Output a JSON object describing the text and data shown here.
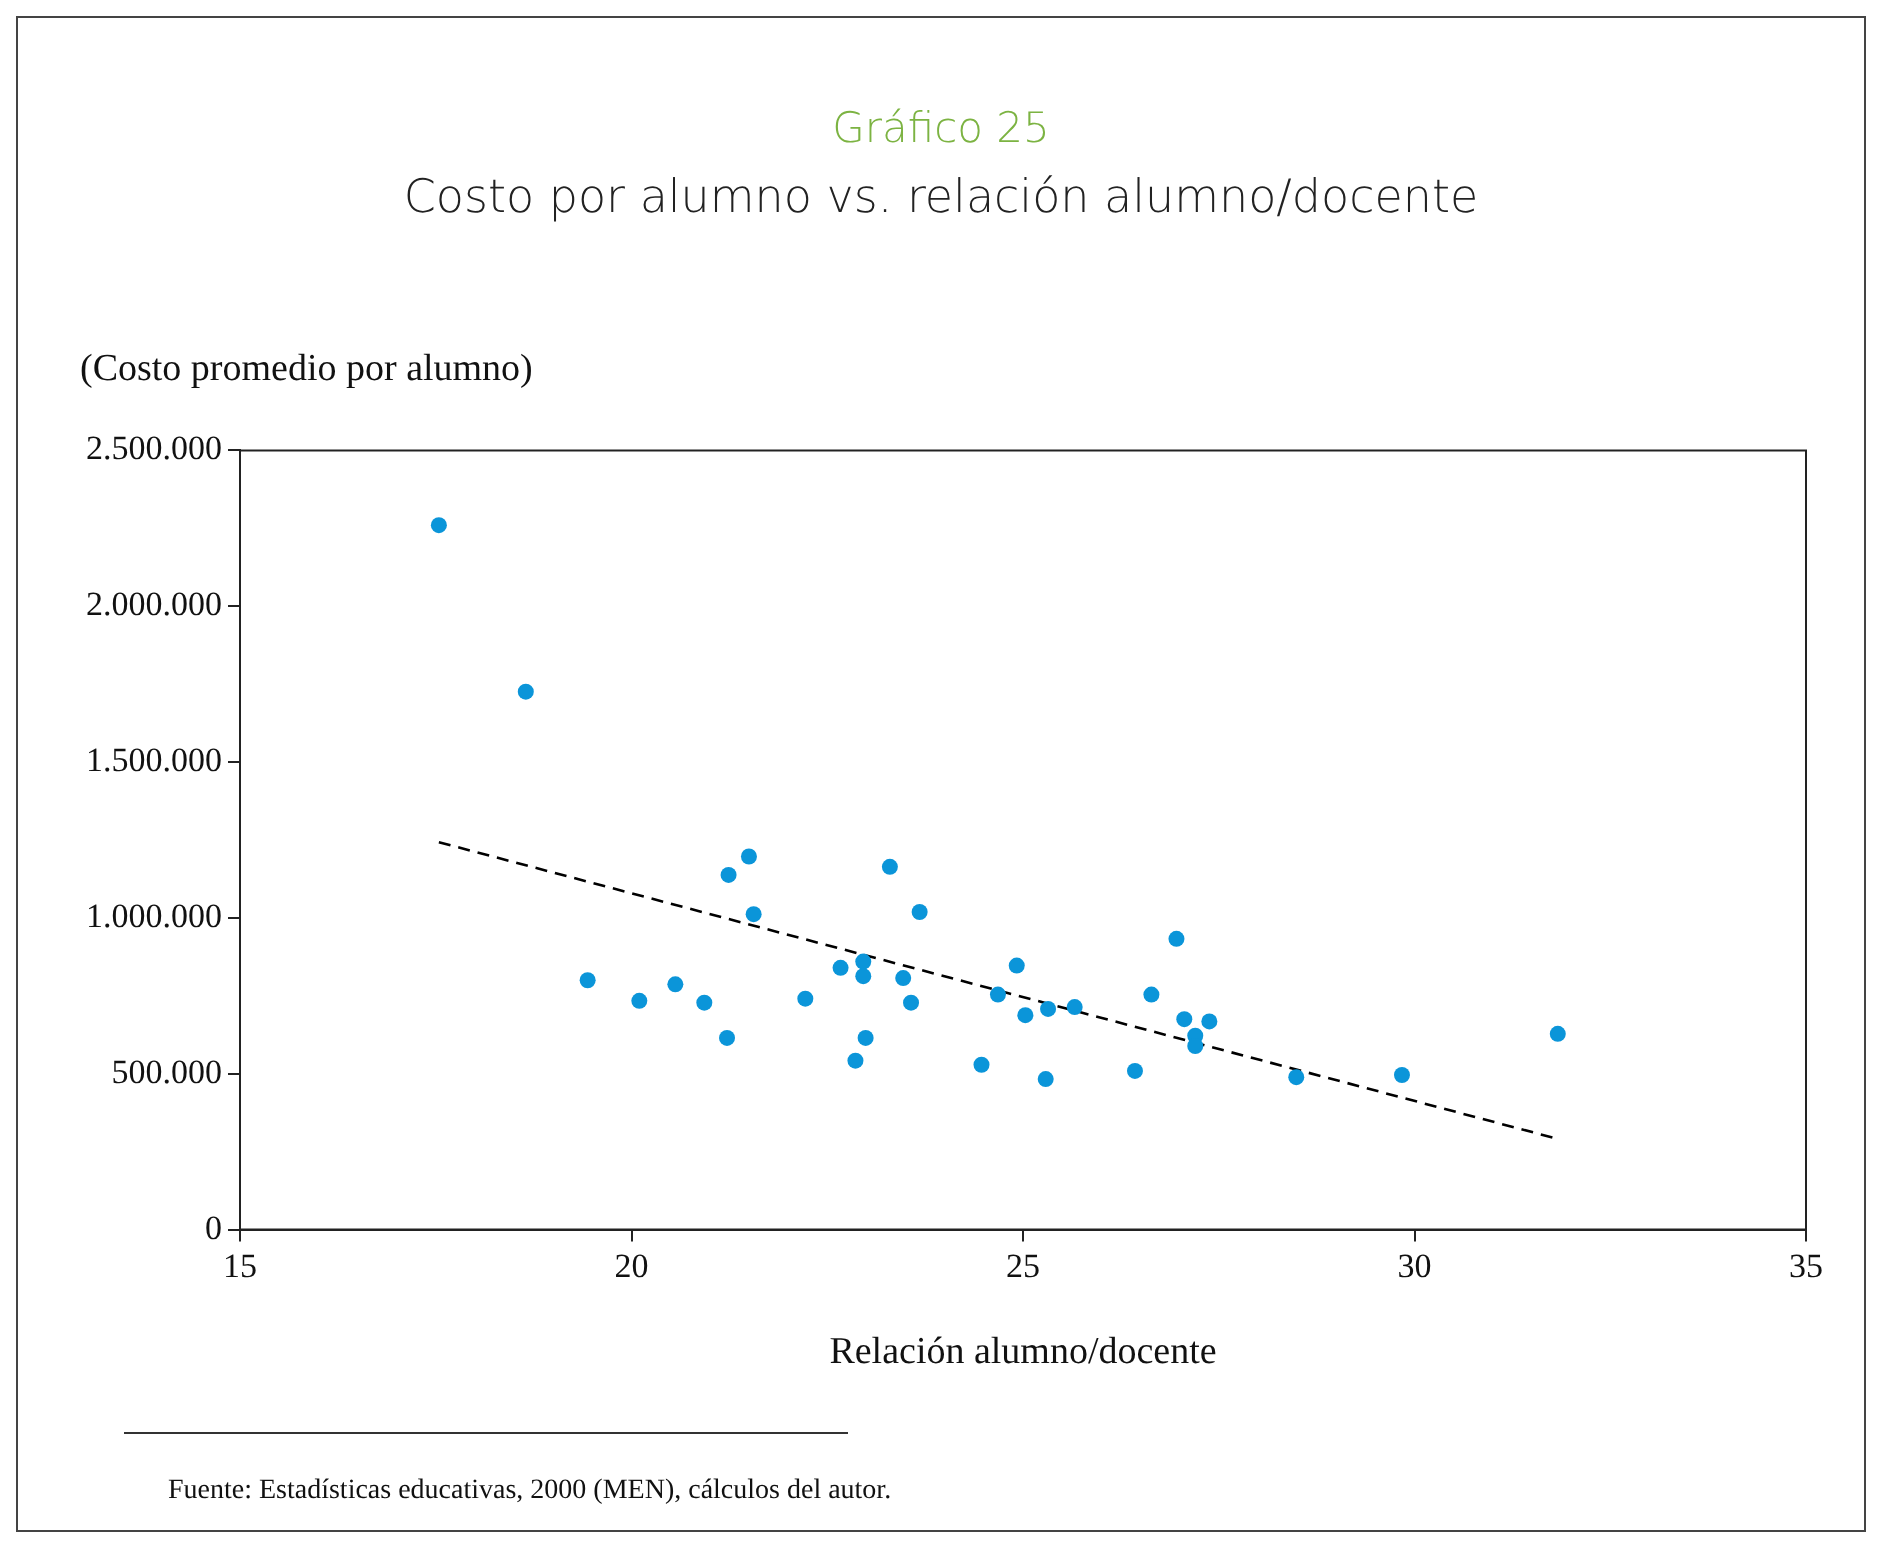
{
  "chart_data": {
    "type": "scatter",
    "title": "Gráfico 25",
    "subtitle": "Costo por alumno vs. relación alumno/docente",
    "xlabel": "Relación alumno/docente",
    "ylabel": "(Costo promedio por alumno)",
    "annotations": [
      "Fuente: Estadísticas educativas, 2000 (MEN), cálculos del autor."
    ],
    "xlim": [
      15,
      35
    ],
    "xticks": [
      15,
      20,
      25,
      30,
      35
    ],
    "ylim": [
      0,
      2500000
    ],
    "yticks": [
      {
        "value": 0,
        "label": "0"
      },
      {
        "value": 500000,
        "label": "500.000"
      },
      {
        "value": 1000000,
        "label": "1.000.000"
      },
      {
        "value": 1500000,
        "label": "1.500.000"
      },
      {
        "value": 2000000,
        "label": "2.000.000"
      },
      {
        "value": 2500000,
        "label": "2.500.000"
      }
    ],
    "grid": false,
    "legend": false,
    "marker": "circle",
    "series": [
      {
        "color": "#0b95d9",
        "x": [
          17.54,
          18.65,
          19.44,
          20.1,
          20.56,
          20.93,
          21.22,
          21.24,
          21.5,
          21.56,
          22.22,
          22.67,
          22.86,
          22.96,
          22.96,
          22.99,
          23.3,
          23.47,
          23.57,
          23.68,
          24.47,
          24.68,
          24.92,
          25.03,
          25.29,
          25.32,
          25.66,
          26.43,
          26.64,
          26.96,
          27.06,
          27.2,
          27.2,
          27.38,
          28.49,
          29.84,
          31.83
        ],
        "values": [
          2260000,
          1726000,
          800000,
          734000,
          787000,
          728000,
          615000,
          1138000,
          1197000,
          1012000,
          741000,
          840000,
          542000,
          860000,
          813000,
          615000,
          1164000,
          807000,
          728000,
          1019000,
          529000,
          754000,
          847000,
          688000,
          483000,
          708000,
          714000,
          509000,
          754000,
          933000,
          675000,
          622000,
          589000,
          668000,
          489000,
          496000,
          628000
        ]
      },
      {
        "type": "line",
        "color": "#000000",
        "line_style": "dashed",
        "marker": "none",
        "x": [
          17.54,
          31.83
        ],
        "values": [
          1243000,
          291000
        ]
      }
    ]
  }
}
